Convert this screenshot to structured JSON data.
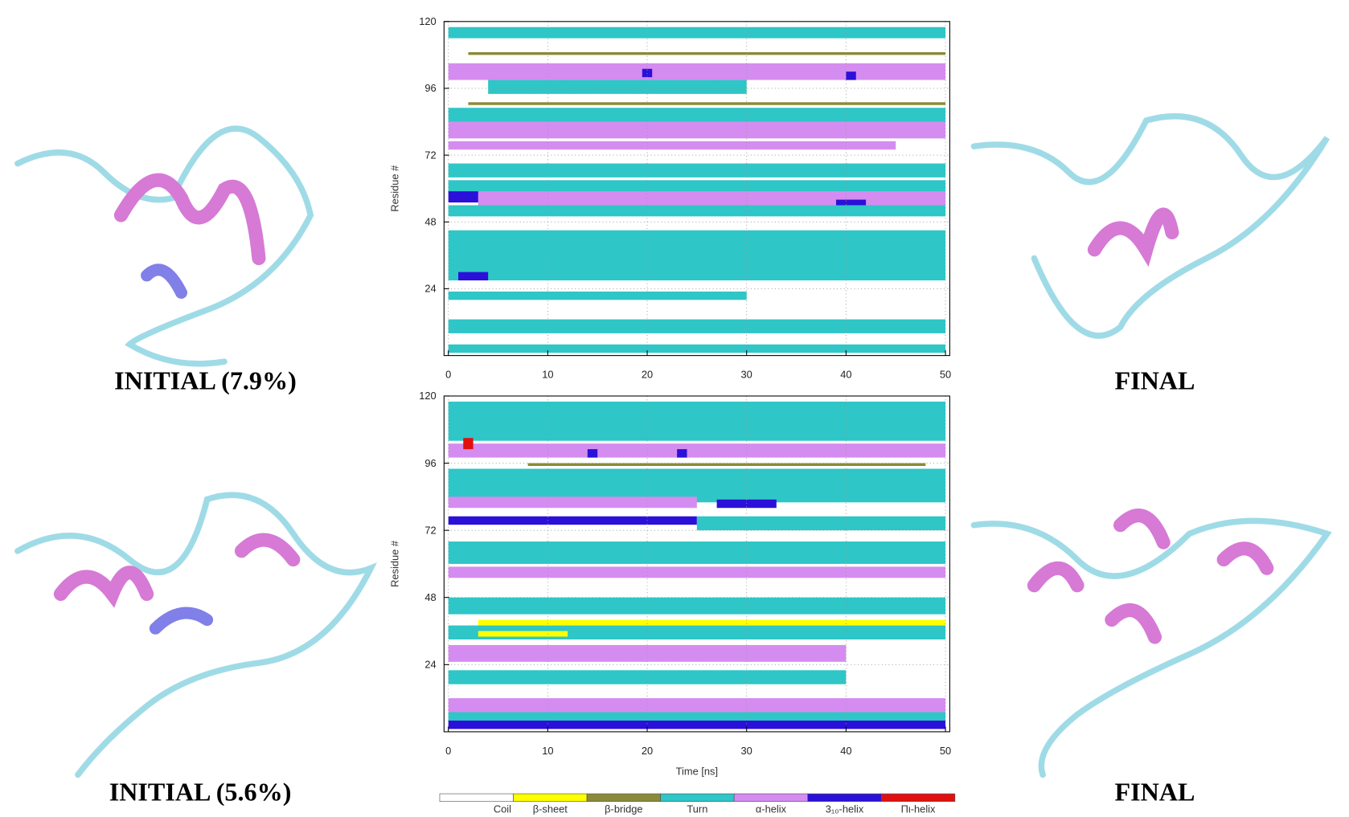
{
  "labels": {
    "top_left": "INITIAL (7.9%)",
    "top_right": "FINAL",
    "bottom_left": "INITIAL (5.6%)",
    "bottom_right": "FINAL"
  },
  "legend": [
    {
      "name": "Coil",
      "color": "#ffffff"
    },
    {
      "name": "β-sheet",
      "color": "#ffff00"
    },
    {
      "name": "β-bridge",
      "color": "#8a8a3a"
    },
    {
      "name": "Turn",
      "color": "#2ec6c6"
    },
    {
      "name": "α-helix",
      "color": "#d58cf0"
    },
    {
      "name": "3₁₀-helix",
      "color": "#2a10d8"
    },
    {
      "name": "Πι-helix",
      "color": "#e01010"
    }
  ],
  "chart_data": [
    {
      "type": "heatmap",
      "ylabel": "Residue #",
      "xlim": [
        0,
        50
      ],
      "ylim": [
        0,
        120
      ],
      "xticks": [
        0,
        10,
        20,
        30,
        40,
        50
      ],
      "yticks": [
        24,
        48,
        72,
        96,
        120
      ],
      "grid": true,
      "segments": [
        {
          "color": "#2ec6c6",
          "residues": [
            114,
            118
          ],
          "time": [
            0,
            50
          ]
        },
        {
          "color": "#8a8a3a",
          "residues": [
            108,
            109
          ],
          "time": [
            2,
            50
          ]
        },
        {
          "color": "#d58cf0",
          "residues": [
            99,
            105
          ],
          "time": [
            0,
            50
          ]
        },
        {
          "color": "#2ec6c6",
          "residues": [
            94,
            99
          ],
          "time": [
            4,
            30
          ]
        },
        {
          "color": "#8a8a3a",
          "residues": [
            90,
            91
          ],
          "time": [
            2,
            50
          ]
        },
        {
          "color": "#2ec6c6",
          "residues": [
            84,
            89
          ],
          "time": [
            0,
            50
          ]
        },
        {
          "color": "#d58cf0",
          "residues": [
            78,
            84
          ],
          "time": [
            0,
            50
          ]
        },
        {
          "color": "#d58cf0",
          "residues": [
            74,
            77
          ],
          "time": [
            0,
            45
          ]
        },
        {
          "color": "#2ec6c6",
          "residues": [
            64,
            69
          ],
          "time": [
            0,
            50
          ]
        },
        {
          "color": "#2ec6c6",
          "residues": [
            58,
            63
          ],
          "time": [
            0,
            50
          ]
        },
        {
          "color": "#d58cf0",
          "residues": [
            54,
            59
          ],
          "time": [
            3,
            50
          ]
        },
        {
          "color": "#2a10d8",
          "residues": [
            55,
            59
          ],
          "time": [
            0,
            3
          ]
        },
        {
          "color": "#2ec6c6",
          "residues": [
            50,
            54
          ],
          "time": [
            0,
            50
          ]
        },
        {
          "color": "#2ec6c6",
          "residues": [
            27,
            45
          ],
          "time": [
            0,
            50
          ]
        },
        {
          "color": "#2a10d8",
          "residues": [
            27,
            30
          ],
          "time": [
            1,
            4
          ]
        },
        {
          "color": "#2ec6c6",
          "residues": [
            20,
            23
          ],
          "time": [
            0,
            30
          ]
        },
        {
          "color": "#2ec6c6",
          "residues": [
            8,
            13
          ],
          "time": [
            0,
            50
          ]
        },
        {
          "color": "#2ec6c6",
          "residues": [
            1,
            4
          ],
          "time": [
            0,
            50
          ]
        },
        {
          "color": "#2a10d8",
          "residues": [
            100,
            103
          ],
          "time": [
            19.5,
            20.5
          ]
        },
        {
          "color": "#2a10d8",
          "residues": [
            54,
            56
          ],
          "time": [
            39,
            42
          ]
        },
        {
          "color": "#2a10d8",
          "residues": [
            99,
            102
          ],
          "time": [
            40,
            41
          ]
        }
      ]
    },
    {
      "type": "heatmap",
      "xlabel": "Time [ns]",
      "ylabel": "Residue #",
      "xlim": [
        0,
        50
      ],
      "ylim": [
        0,
        120
      ],
      "xticks": [
        0,
        10,
        20,
        30,
        40,
        50
      ],
      "yticks": [
        24,
        48,
        72,
        96,
        120
      ],
      "grid": true,
      "segments": [
        {
          "color": "#2ec6c6",
          "residues": [
            104,
            118
          ],
          "time": [
            0,
            50
          ]
        },
        {
          "color": "#d58cf0",
          "residues": [
            98,
            103
          ],
          "time": [
            0,
            50
          ]
        },
        {
          "color": "#2a10d8",
          "residues": [
            98,
            101
          ],
          "time": [
            14,
            15
          ]
        },
        {
          "color": "#2a10d8",
          "residues": [
            98,
            101
          ],
          "time": [
            23,
            24
          ]
        },
        {
          "color": "#e01010",
          "residues": [
            101,
            105
          ],
          "time": [
            1.5,
            2.5
          ]
        },
        {
          "color": "#8a8a3a",
          "residues": [
            95,
            96
          ],
          "time": [
            8,
            48
          ]
        },
        {
          "color": "#2ec6c6",
          "residues": [
            82,
            94
          ],
          "time": [
            0,
            50
          ]
        },
        {
          "color": "#d58cf0",
          "residues": [
            80,
            84
          ],
          "time": [
            0,
            25
          ]
        },
        {
          "color": "#2a10d8",
          "residues": [
            80,
            83
          ],
          "time": [
            27,
            33
          ]
        },
        {
          "color": "#2a10d8",
          "residues": [
            74,
            77
          ],
          "time": [
            0,
            25
          ]
        },
        {
          "color": "#2ec6c6",
          "residues": [
            72,
            77
          ],
          "time": [
            25,
            50
          ]
        },
        {
          "color": "#2ec6c6",
          "residues": [
            60,
            68
          ],
          "time": [
            0,
            50
          ]
        },
        {
          "color": "#d58cf0",
          "residues": [
            55,
            59
          ],
          "time": [
            0,
            50
          ]
        },
        {
          "color": "#2ec6c6",
          "residues": [
            42,
            48
          ],
          "time": [
            0,
            50
          ]
        },
        {
          "color": "#2ec6c6",
          "residues": [
            33,
            38
          ],
          "time": [
            0,
            50
          ]
        },
        {
          "color": "#ffff00",
          "residues": [
            38,
            40
          ],
          "time": [
            3,
            50
          ]
        },
        {
          "color": "#ffff00",
          "residues": [
            34,
            36
          ],
          "time": [
            3,
            12
          ]
        },
        {
          "color": "#d58cf0",
          "residues": [
            25,
            31
          ],
          "time": [
            0,
            40
          ]
        },
        {
          "color": "#2ec6c6",
          "residues": [
            17,
            22
          ],
          "time": [
            0,
            40
          ]
        },
        {
          "color": "#d58cf0",
          "residues": [
            7,
            12
          ],
          "time": [
            0,
            50
          ]
        },
        {
          "color": "#2ec6c6",
          "residues": [
            4,
            7
          ],
          "time": [
            0,
            50
          ]
        },
        {
          "color": "#2a10d8",
          "residues": [
            1,
            4
          ],
          "time": [
            0,
            50
          ]
        }
      ]
    }
  ]
}
